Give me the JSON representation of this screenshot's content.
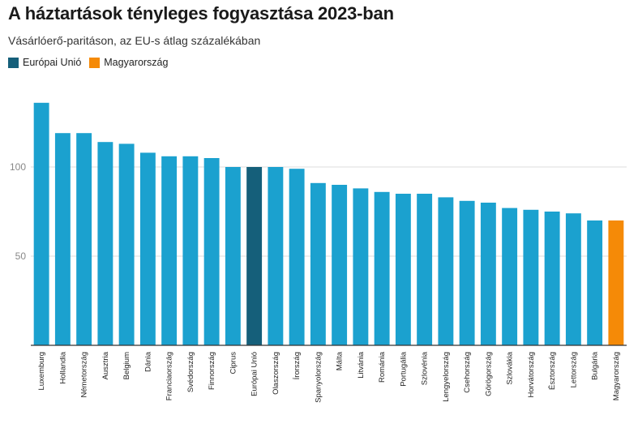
{
  "chart_data": {
    "type": "bar",
    "title": "A háztartások tényleges fogyasztása 2023-ban",
    "subtitle": "Vásárlóerő-paritáson, az EU-s átlag százalékában",
    "legend": [
      {
        "name": "Európai Unió",
        "color": "#155f7a"
      },
      {
        "name": "Magyarország",
        "color": "#f58a07"
      }
    ],
    "default_color": "#1ba1cf",
    "categories": [
      "Luxemburg",
      "Hollandia",
      "Németország",
      "Ausztria",
      "Belgium",
      "Dánia",
      "Franciaország",
      "Svédország",
      "Finnország",
      "Ciprus",
      "Európai Unió",
      "Olaszország",
      "Írország",
      "Spanyolország",
      "Málta",
      "Litvánia",
      "Románia",
      "Portugália",
      "Szlovénia",
      "Lengyelország",
      "Csehország",
      "Görögország",
      "Szlovákia",
      "Horvátország",
      "Észtország",
      "Lettország",
      "Bulgária",
      "Magyarország"
    ],
    "values": [
      136,
      119,
      119,
      114,
      113,
      108,
      106,
      106,
      105,
      100,
      100,
      100,
      99,
      91,
      90,
      88,
      86,
      85,
      85,
      83,
      81,
      80,
      77,
      76,
      75,
      74,
      70,
      70
    ],
    "highlight": {
      "Európai Unió": "#155f7a",
      "Magyarország": "#f58a07"
    },
    "yticks": [
      50,
      100
    ],
    "ylim": [
      0,
      140
    ],
    "grid": true
  }
}
